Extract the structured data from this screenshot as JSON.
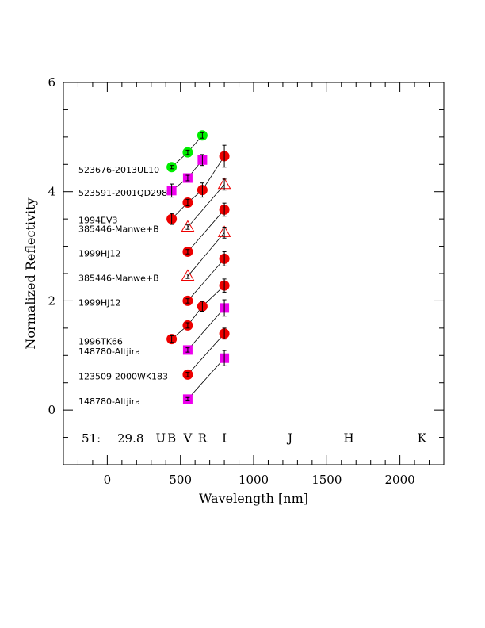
{
  "chart_data": {
    "type": "scatter",
    "title": "",
    "xlabel": "Wavelength [nm]",
    "ylabel": "Normalized Reflectivity",
    "xlim": [
      -300,
      2300
    ],
    "ylim": [
      -1,
      6
    ],
    "xticks": [
      0,
      500,
      1000,
      1500,
      2000
    ],
    "yticks": [
      0,
      2,
      4,
      6
    ],
    "grid": false,
    "legend": "none",
    "header": {
      "id": "51:",
      "value": "29.8"
    },
    "bands": [
      {
        "name": "U",
        "x": 365
      },
      {
        "name": "B",
        "x": 440
      },
      {
        "name": "V",
        "x": 550
      },
      {
        "name": "R",
        "x": 650
      },
      {
        "name": "I",
        "x": 800
      },
      {
        "name": "J",
        "x": 1250
      },
      {
        "name": "H",
        "x": 1650
      },
      {
        "name": "K",
        "x": 2150
      }
    ],
    "series": [
      {
        "label": "523676-2013UL10",
        "label_y": 4.4,
        "marker": "circle",
        "color": "#00ee00",
        "points": [
          {
            "x": 440,
            "y": 4.45,
            "err": 0.03
          },
          {
            "x": 550,
            "y": 4.72,
            "err": 0.04
          },
          {
            "x": 650,
            "y": 5.03,
            "err": 0.05
          }
        ]
      },
      {
        "label": "523591-2001QD298",
        "label_y": 3.98,
        "marker": "square",
        "color": "#ee00ee",
        "points": [
          {
            "x": 440,
            "y": 4.02,
            "err": 0.12
          },
          {
            "x": 550,
            "y": 4.25,
            "err": 0.05
          },
          {
            "x": 650,
            "y": 4.58,
            "err": 0.1
          }
        ]
      },
      {
        "label": "1994EV3",
        "label_y": 3.48,
        "marker": "circle",
        "color": "#ee0000",
        "points": [
          {
            "x": 440,
            "y": 3.5,
            "err": 0.1
          },
          {
            "x": 550,
            "y": 3.8,
            "err": 0.06
          },
          {
            "x": 650,
            "y": 4.03,
            "err": 0.13
          },
          {
            "x": 800,
            "y": 4.65,
            "err": 0.2
          }
        ]
      },
      {
        "label": "385446-Manwe+B",
        "label_y": 3.32,
        "marker": "triangle",
        "color": "#ee0000",
        "points": [
          {
            "x": 550,
            "y": 3.35,
            "err": 0.04
          },
          {
            "x": 800,
            "y": 4.13,
            "err": 0.1
          }
        ]
      },
      {
        "label": "1999HJ12",
        "label_y": 2.87,
        "marker": "circle",
        "color": "#ee0000",
        "points": [
          {
            "x": 550,
            "y": 2.9,
            "err": 0.04
          },
          {
            "x": 800,
            "y": 3.67,
            "err": 0.12
          }
        ]
      },
      {
        "label": "385446-Manwe+B",
        "label_y": 2.42,
        "marker": "triangle",
        "color": "#ee0000",
        "points": [
          {
            "x": 550,
            "y": 2.45,
            "err": 0.04
          },
          {
            "x": 800,
            "y": 3.25,
            "err": 0.1
          }
        ]
      },
      {
        "label": "1999HJ12",
        "label_y": 1.97,
        "marker": "circle",
        "color": "#ee0000",
        "points": [
          {
            "x": 550,
            "y": 2.0,
            "err": 0.04
          },
          {
            "x": 800,
            "y": 2.77,
            "err": 0.13
          }
        ]
      },
      {
        "label": "1996TK66",
        "label_y": 1.26,
        "marker": "circle",
        "color": "#ee0000",
        "points": [
          {
            "x": 440,
            "y": 1.3,
            "err": 0.06
          },
          {
            "x": 550,
            "y": 1.55,
            "err": 0.05
          },
          {
            "x": 650,
            "y": 1.9,
            "err": 0.09
          },
          {
            "x": 800,
            "y": 2.28,
            "err": 0.12
          }
        ]
      },
      {
        "label": "148780-Altjira",
        "label_y": 1.08,
        "marker": "square",
        "color": "#ee00ee",
        "points": [
          {
            "x": 550,
            "y": 1.1,
            "err": 0.04
          },
          {
            "x": 800,
            "y": 1.87,
            "err": 0.15
          }
        ]
      },
      {
        "label": "123509-2000WK183",
        "label_y": 0.62,
        "marker": "circle",
        "color": "#ee0000",
        "points": [
          {
            "x": 550,
            "y": 0.65,
            "err": 0.04
          },
          {
            "x": 800,
            "y": 1.4,
            "err": 0.1
          }
        ]
      },
      {
        "label": "148780-Altjira",
        "label_y": 0.16,
        "marker": "square",
        "color": "#ee00ee",
        "points": [
          {
            "x": 550,
            "y": 0.2,
            "err": 0.03
          },
          {
            "x": 800,
            "y": 0.95,
            "err": 0.14
          }
        ]
      }
    ]
  }
}
